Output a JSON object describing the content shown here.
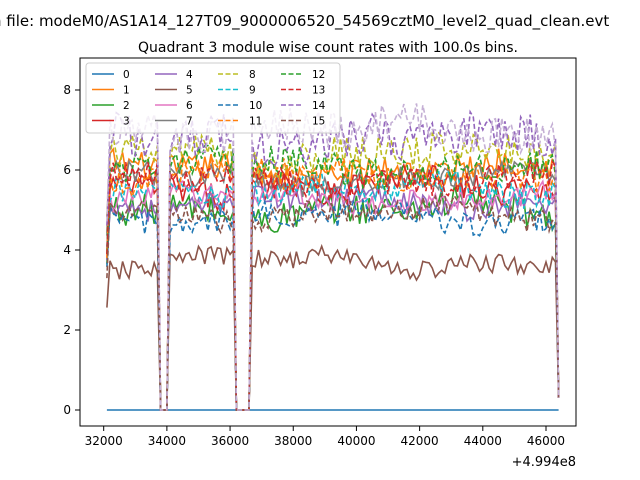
{
  "chart_data": {
    "type": "line",
    "suptitle": "n file: modeM0/AS1A14_127T09_9000006520_54569cztM0_level2_quad_clean.evt",
    "title": "Quadrant 3 module wise count rates with 100.0s bins.",
    "xlabel": "",
    "ylabel": "",
    "x_offset_label": "+4.994e8",
    "xlim": [
      31250,
      46950
    ],
    "ylim": [
      -0.4,
      8.8
    ],
    "xticks": [
      32000,
      34000,
      36000,
      38000,
      40000,
      42000,
      44000,
      46000
    ],
    "xtick_labels": [
      "32000",
      "34000",
      "36000",
      "38000",
      "40000",
      "42000",
      "44000",
      "46000"
    ],
    "yticks": [
      0,
      2,
      4,
      6,
      8
    ],
    "ytick_labels": [
      "0",
      "2",
      "4",
      "6",
      "8"
    ],
    "x_start": 32100,
    "x_step": 100,
    "num_points": 144,
    "gap_indices": [
      [
        17,
        19
      ],
      [
        41,
        45
      ]
    ],
    "series": [
      {
        "name": "0",
        "color": "#1f77b4",
        "dash": "solid",
        "level": 0.0,
        "amp": 0.0
      },
      {
        "name": "1",
        "color": "#ff7f0e",
        "dash": "solid",
        "level": 6.0,
        "amp": 0.35
      },
      {
        "name": "2",
        "color": "#2ca02c",
        "dash": "solid",
        "level": 5.0,
        "amp": 0.4
      },
      {
        "name": "3",
        "color": "#d62728",
        "dash": "solid",
        "level": 5.6,
        "amp": 0.35
      },
      {
        "name": "4",
        "color": "#9467bd",
        "dash": "solid",
        "level": 5.2,
        "amp": 0.3
      },
      {
        "name": "5",
        "color": "#8c564b",
        "dash": "solid",
        "level": 3.7,
        "amp": 0.25
      },
      {
        "name": "6",
        "color": "#e377c2",
        "dash": "solid",
        "level": 5.3,
        "amp": 0.3
      },
      {
        "name": "7",
        "color": "#7f7f7f",
        "dash": "solid",
        "level": 5.8,
        "amp": 0.3
      },
      {
        "name": "8",
        "color": "#bcbd22",
        "dash": "dashed",
        "level": 6.4,
        "amp": 0.45
      },
      {
        "name": "9",
        "color": "#17becf",
        "dash": "dashed",
        "level": 5.5,
        "amp": 0.35
      },
      {
        "name": "10",
        "color": "#1f77b4",
        "dash": "dashed",
        "level": 4.8,
        "amp": 0.3
      },
      {
        "name": "11",
        "color": "#ff7f0e",
        "dash": "dashed",
        "level": 5.9,
        "amp": 0.35
      },
      {
        "name": "12",
        "color": "#2ca02c",
        "dash": "dashed",
        "level": 6.1,
        "amp": 0.4
      },
      {
        "name": "13",
        "color": "#d62728",
        "dash": "dashed",
        "level": 5.7,
        "amp": 0.35
      },
      {
        "name": "14",
        "color": "#9467bd",
        "dash": "dashed",
        "level": 6.8,
        "amp": 0.55
      },
      {
        "name": "15",
        "color": "#8c564b",
        "dash": "dashed",
        "level": 4.9,
        "amp": 0.3
      },
      {
        "name": "",
        "color": "#c5b0d5",
        "dash": "dashed",
        "level": 7.0,
        "amp": 0.5
      }
    ],
    "legend": {
      "location": "upper-left",
      "columns": 4
    }
  }
}
